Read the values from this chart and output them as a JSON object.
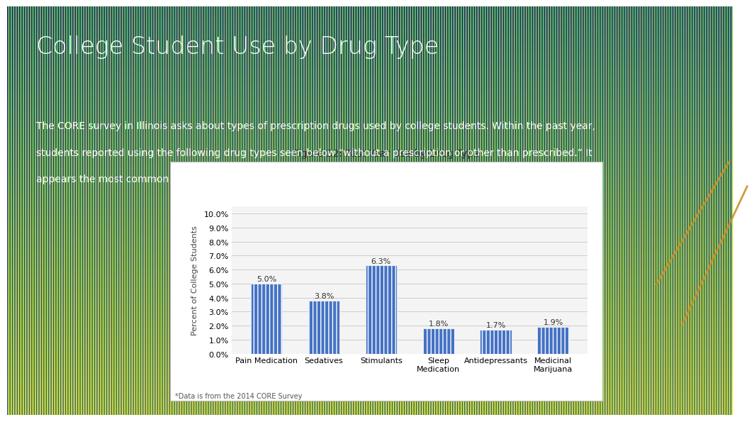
{
  "slide_title": "College Student Use by Drug Type",
  "slide_text_line1": "The CORE survey in Illinois asks about types of prescription drugs used by college students. Within the past year,",
  "slide_text_line2": "students reported using the following drug types seen below “without a prescription or other than prescribed.” It",
  "slide_text_line3": "appears the most common type of drug was stimulants, followed by pain medications.",
  "chart_title": "Figure 32: Past Year Use by Drug Type",
  "categories": [
    "Pain Medication",
    "Sedatives",
    "Stimulants",
    "Sleep\nMedication",
    "Antidepressants",
    "Medicinal\nMarijuana"
  ],
  "values": [
    5.0,
    3.8,
    6.3,
    1.8,
    1.7,
    1.9
  ],
  "bar_color": "#4472C4",
  "ylabel": "Percent of College Students",
  "ylim": [
    0,
    0.105
  ],
  "yticks": [
    0.0,
    0.01,
    0.02,
    0.03,
    0.04,
    0.05,
    0.06,
    0.07,
    0.08,
    0.09,
    0.1
  ],
  "ytick_labels": [
    "0.0%",
    "1.0%",
    "2.0%",
    "3.0%",
    "4.0%",
    "5.0%",
    "6.0%",
    "7.0%",
    "8.0%",
    "9.0%",
    "10.0%"
  ],
  "footnote": "*Data is from the 2014 CORE Survey",
  "bg_top_color": "#56C5E6",
  "bg_bottom_color": "#2990BF",
  "slide_title_color": "#FFFFFF",
  "slide_text_color": "#FFFFFF",
  "chart_bg": "#FFFFFF",
  "bar_hatch": "|||",
  "bar_hatch_color": "#FFFFFF",
  "diag_line_color": "#C8922A",
  "value_label_fontsize": 8,
  "chart_title_fontsize": 10,
  "axis_fontsize": 8,
  "ylabel_fontsize": 8,
  "slide_title_fontsize": 24,
  "slide_text_fontsize": 10
}
